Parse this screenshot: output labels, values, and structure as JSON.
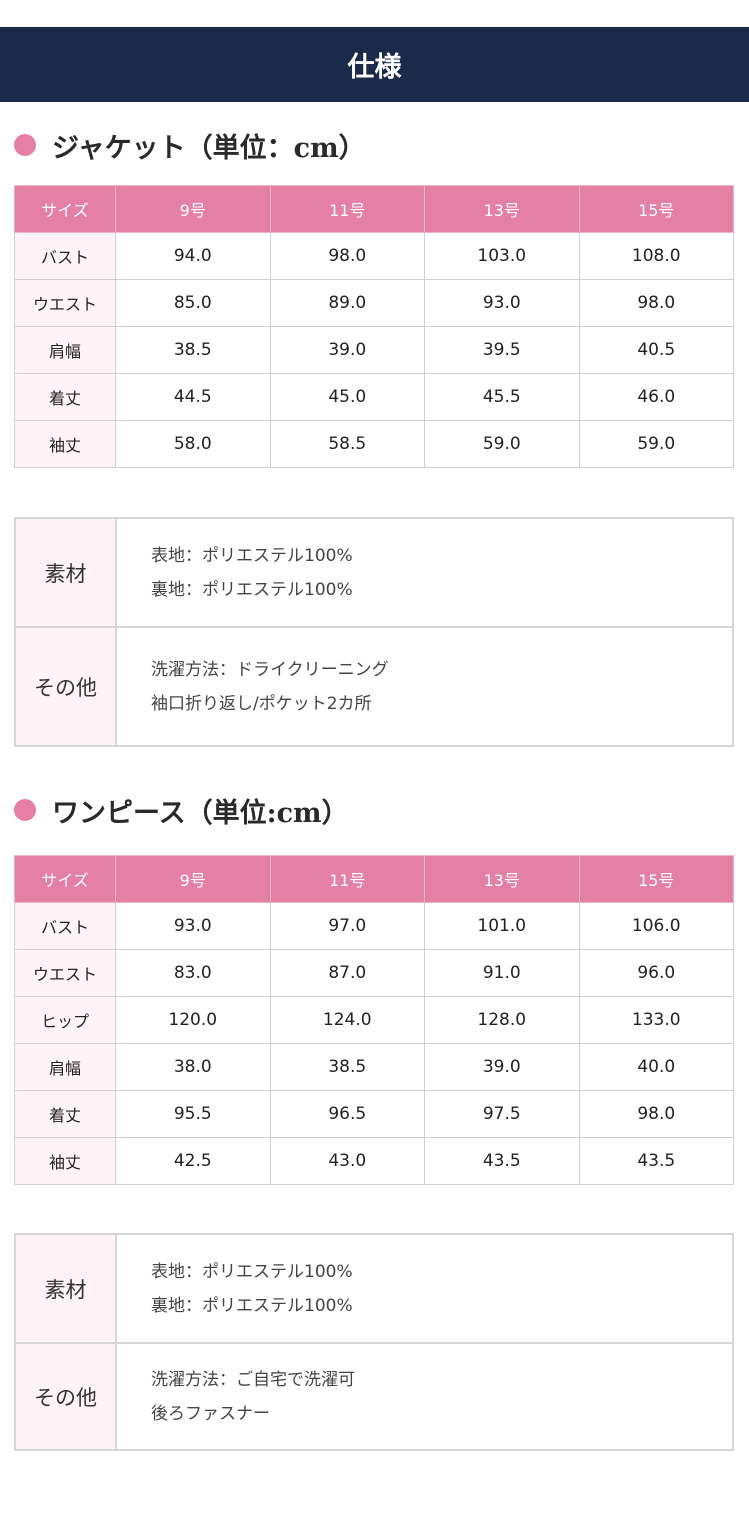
{
  "header": {
    "title": "仕様"
  },
  "jacket": {
    "title": "ジャケット（単位：cm）",
    "columns": [
      "サイズ",
      "9号",
      "11号",
      "13号",
      "15号"
    ],
    "rows": [
      {
        "label": "バスト",
        "values": [
          "94.0",
          "98.0",
          "103.0",
          "108.0"
        ]
      },
      {
        "label": "ウエスト",
        "values": [
          "85.0",
          "89.0",
          "93.0",
          "98.0"
        ]
      },
      {
        "label": "肩幅",
        "values": [
          "38.5",
          "39.0",
          "39.5",
          "40.5"
        ]
      },
      {
        "label": "着丈",
        "values": [
          "44.5",
          "45.0",
          "45.5",
          "46.0"
        ]
      },
      {
        "label": "袖丈",
        "values": [
          "58.0",
          "58.5",
          "59.0",
          "59.0"
        ]
      }
    ],
    "material": {
      "label": "素材",
      "lines": [
        "表地：ポリエステル100%",
        "裏地：ポリエステル100%"
      ]
    },
    "other": {
      "label": "その他",
      "lines": [
        "洗濯方法：ドライクリーニング",
        "袖口折り返し/ポケット2カ所"
      ]
    }
  },
  "dress": {
    "title": "ワンピース（単位:cm）",
    "columns": [
      "サイズ",
      "9号",
      "11号",
      "13号",
      "15号"
    ],
    "rows": [
      {
        "label": "バスト",
        "values": [
          "93.0",
          "97.0",
          "101.0",
          "106.0"
        ]
      },
      {
        "label": "ウエスト",
        "values": [
          "83.0",
          "87.0",
          "91.0",
          "96.0"
        ]
      },
      {
        "label": "ヒップ",
        "values": [
          "120.0",
          "124.0",
          "128.0",
          "133.0"
        ]
      },
      {
        "label": "肩幅",
        "values": [
          "38.0",
          "38.5",
          "39.0",
          "40.0"
        ]
      },
      {
        "label": "着丈",
        "values": [
          "95.5",
          "96.5",
          "97.5",
          "98.0"
        ]
      },
      {
        "label": "袖丈",
        "values": [
          "42.5",
          "43.0",
          "43.5",
          "43.5"
        ]
      }
    ],
    "material": {
      "label": "素材",
      "lines": [
        "表地：ポリエステル100%",
        "裏地：ポリエステル100%"
      ]
    },
    "other": {
      "label": "その他",
      "lines": [
        "洗濯方法：ご自宅で洗濯可",
        "後ろファスナー"
      ]
    }
  },
  "colors": {
    "header_bg": "#1b2a4a",
    "accent_pink": "#e580a5",
    "label_bg": "#fff3f7"
  }
}
